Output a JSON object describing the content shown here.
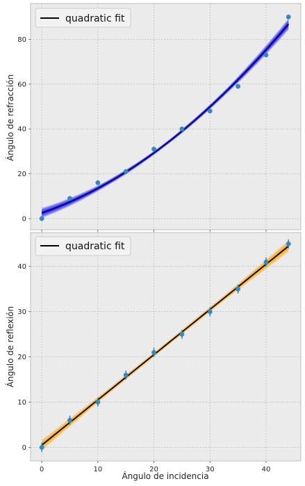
{
  "colors": {
    "panel_bg": "#ebebeb",
    "grid": "#b0b0b0",
    "fit_line": "#000000",
    "band_top": "#1a1aff",
    "band_bottom": "#ffa200",
    "points": "#348abd",
    "spine": "#bcbcbc"
  },
  "chart_data": [
    {
      "type": "scatter",
      "title": "",
      "xlabel": "",
      "ylabel": "Ángulo de refracción",
      "xlim": [
        -2,
        46.2
      ],
      "ylim": [
        -5,
        96
      ],
      "xticks": [
        0,
        10,
        20,
        30,
        40
      ],
      "yticks": [
        0,
        20,
        40,
        60,
        80
      ],
      "grid": true,
      "legend": {
        "position": "top-left",
        "entries": [
          "quadratic fit"
        ]
      },
      "series": [
        {
          "name": "data",
          "kind": "points",
          "x": [
            0,
            5,
            10,
            15,
            20,
            25,
            30,
            35,
            40,
            44
          ],
          "y": [
            0,
            9,
            16,
            21,
            31,
            40,
            48,
            59,
            73,
            90
          ],
          "yerr": [
            0.8,
            0.8,
            0.8,
            0.8,
            0.8,
            0.8,
            0.8,
            0.8,
            0.8,
            0.8
          ]
        },
        {
          "name": "quadratic fit",
          "kind": "fit",
          "coefficients": {
            "a": 0.024,
            "b": 0.86,
            "c": 2.5
          },
          "band_halfwidth": [
            2.2,
            1.2,
            0.8,
            1.2,
            2.5
          ]
        }
      ]
    },
    {
      "type": "scatter",
      "title": "",
      "xlabel": "Ángulo de incidencia",
      "ylabel": "Ángulo de reflexión",
      "xlim": [
        -2,
        46.2
      ],
      "ylim": [
        -3,
        47.5
      ],
      "xticks": [
        0,
        10,
        20,
        30,
        40
      ],
      "yticks": [
        0,
        10,
        20,
        30,
        40
      ],
      "grid": true,
      "legend": {
        "position": "top-left",
        "entries": [
          "quadratic fit"
        ]
      },
      "series": [
        {
          "name": "data",
          "kind": "points",
          "x": [
            0,
            5,
            10,
            15,
            20,
            25,
            30,
            35,
            40,
            44
          ],
          "y": [
            0,
            6,
            10,
            16,
            21,
            25,
            30,
            35,
            41,
            45
          ],
          "yerr": [
            1,
            1,
            1,
            1,
            1,
            1,
            1,
            1,
            1,
            1
          ]
        },
        {
          "name": "quadratic fit",
          "kind": "fit",
          "coefficients": {
            "a": 0.0,
            "b": 1.0,
            "c": 0.5
          },
          "band_halfwidth": [
            1.2,
            0.6,
            0.5,
            0.6,
            1.3
          ]
        }
      ]
    }
  ]
}
